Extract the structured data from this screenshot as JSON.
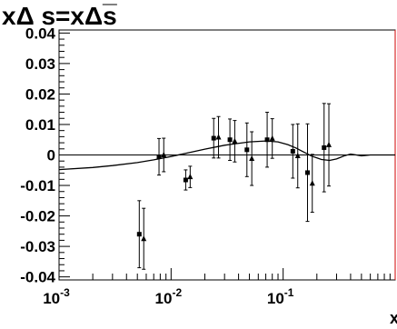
{
  "chart_data": {
    "type": "scatter",
    "title": "xΔ s=xΔs̅",
    "xlabel": "x",
    "ylabel": "",
    "xscale": "log",
    "xlim": [
      0.001,
      1.0
    ],
    "ylim": [
      -0.041,
      0.041
    ],
    "grid": false,
    "legend": "none",
    "x_ticks": [
      {
        "value": 0.001,
        "base": "10",
        "exp": "-3"
      },
      {
        "value": 0.01,
        "base": "10",
        "exp": "-2"
      },
      {
        "value": 0.1,
        "base": "10",
        "exp": "-1"
      }
    ],
    "y_ticks": [
      {
        "value": 0.04,
        "label": "0.04"
      },
      {
        "value": 0.03,
        "label": "0.03"
      },
      {
        "value": 0.02,
        "label": "0.02"
      },
      {
        "value": 0.01,
        "label": "0.01"
      },
      {
        "value": 0.0,
        "label": "0"
      },
      {
        "value": -0.01,
        "label": "-0.01"
      },
      {
        "value": -0.02,
        "label": "-0.02"
      },
      {
        "value": -0.03,
        "label": "-0.03"
      },
      {
        "value": -0.04,
        "label": "-0.04"
      }
    ],
    "curve": {
      "x": [
        0.001,
        0.002,
        0.003,
        0.005,
        0.007,
        0.01,
        0.015,
        0.02,
        0.03,
        0.05,
        0.07,
        0.09,
        0.11,
        0.13,
        0.15,
        0.18,
        0.22,
        0.26,
        0.3,
        0.35,
        0.4,
        0.45,
        0.5,
        0.6,
        0.7,
        1.0
      ],
      "y": [
        -0.0048,
        -0.0041,
        -0.0035,
        -0.0025,
        -0.0016,
        -0.0005,
        0.0009,
        0.0019,
        0.0032,
        0.0043,
        0.0046,
        0.0043,
        0.0034,
        0.0023,
        0.0011,
        -0.0004,
        -0.0015,
        -0.0018,
        -0.0013,
        -0.0003,
        0.0003,
        0.0,
        -0.0003,
        0.0,
        0.0,
        0.0
      ]
    },
    "series": [
      {
        "marker": "square",
        "color": "#000000",
        "x": [
          0.0052,
          0.0078,
          0.0135,
          0.024,
          0.0335,
          0.0475,
          0.072,
          0.122,
          0.165,
          0.232
        ],
        "y": [
          -0.026,
          -0.0006,
          -0.0082,
          0.0055,
          0.005,
          0.0017,
          0.005,
          0.0012,
          -0.0058,
          0.0024
        ],
        "err": [
          0.011,
          0.006,
          0.0033,
          0.0065,
          0.0068,
          0.0088,
          0.009,
          0.0088,
          0.016,
          0.0145
        ]
      },
      {
        "marker": "triangle",
        "color": "#000000",
        "x": [
          0.0057,
          0.0086,
          0.0148,
          0.0265,
          0.037,
          0.0525,
          0.08,
          0.135,
          0.182,
          0.256
        ],
        "y": [
          -0.0275,
          0.0,
          -0.0072,
          0.0058,
          0.0045,
          -0.0012,
          0.0054,
          -0.0003,
          -0.0093,
          0.0033
        ],
        "err": [
          0.01,
          0.0055,
          0.0035,
          0.0068,
          0.0068,
          0.0088,
          0.0065,
          0.0105,
          0.0095,
          0.0135
        ]
      }
    ]
  }
}
